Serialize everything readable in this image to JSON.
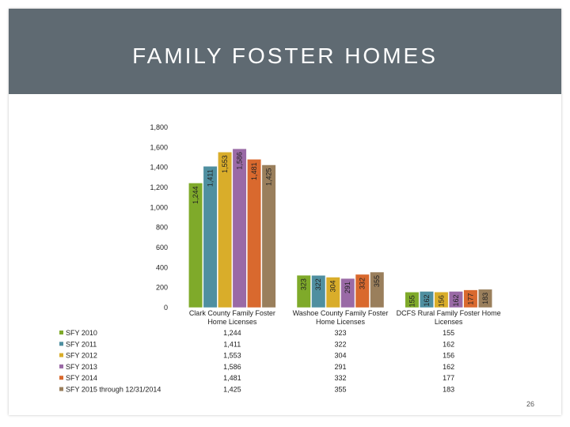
{
  "slide": {
    "title": "FAMILY FOSTER HOMES",
    "page_number": "26"
  },
  "colors": {
    "title_bar": "#5f6a72",
    "series": [
      "#7faa2a",
      "#4f8fa0",
      "#d9ad2a",
      "#9a6aa6",
      "#d9692e",
      "#9a7f5c"
    ]
  },
  "chart_data": {
    "type": "bar",
    "title": "",
    "xlabel": "",
    "ylabel": "",
    "ylim": [
      0,
      1800
    ],
    "yticks": [
      "0",
      "200",
      "400",
      "600",
      "800",
      "1,000",
      "1,200",
      "1,400",
      "1,600",
      "1,800"
    ],
    "grid": false,
    "legend_position": "bottom-left (data table)",
    "categories": [
      [
        "Clark County Family Foster",
        "Home Licenses"
      ],
      [
        "Washoe County Family Foster",
        "Home Licenses"
      ],
      [
        "DCFS Rural Family Foster Home",
        "Licenses"
      ]
    ],
    "series": [
      {
        "name": "SFY 2010",
        "values": [
          1244,
          323,
          155
        ],
        "labels": [
          "1,244",
          "323",
          "155"
        ]
      },
      {
        "name": "SFY 2011",
        "values": [
          1411,
          322,
          162
        ],
        "labels": [
          "1,411",
          "322",
          "162"
        ]
      },
      {
        "name": "SFY 2012",
        "values": [
          1553,
          304,
          156
        ],
        "labels": [
          "1,553",
          "304",
          "156"
        ]
      },
      {
        "name": "SFY 2013",
        "values": [
          1586,
          291,
          162
        ],
        "labels": [
          "1,586",
          "291",
          "162"
        ]
      },
      {
        "name": "SFY 2014",
        "values": [
          1481,
          332,
          177
        ],
        "labels": [
          "1,481",
          "332",
          "177"
        ]
      },
      {
        "name": "SFY 2015 through 12/31/2014",
        "values": [
          1425,
          355,
          183
        ],
        "labels": [
          "1,425",
          "355",
          "183"
        ]
      }
    ]
  }
}
